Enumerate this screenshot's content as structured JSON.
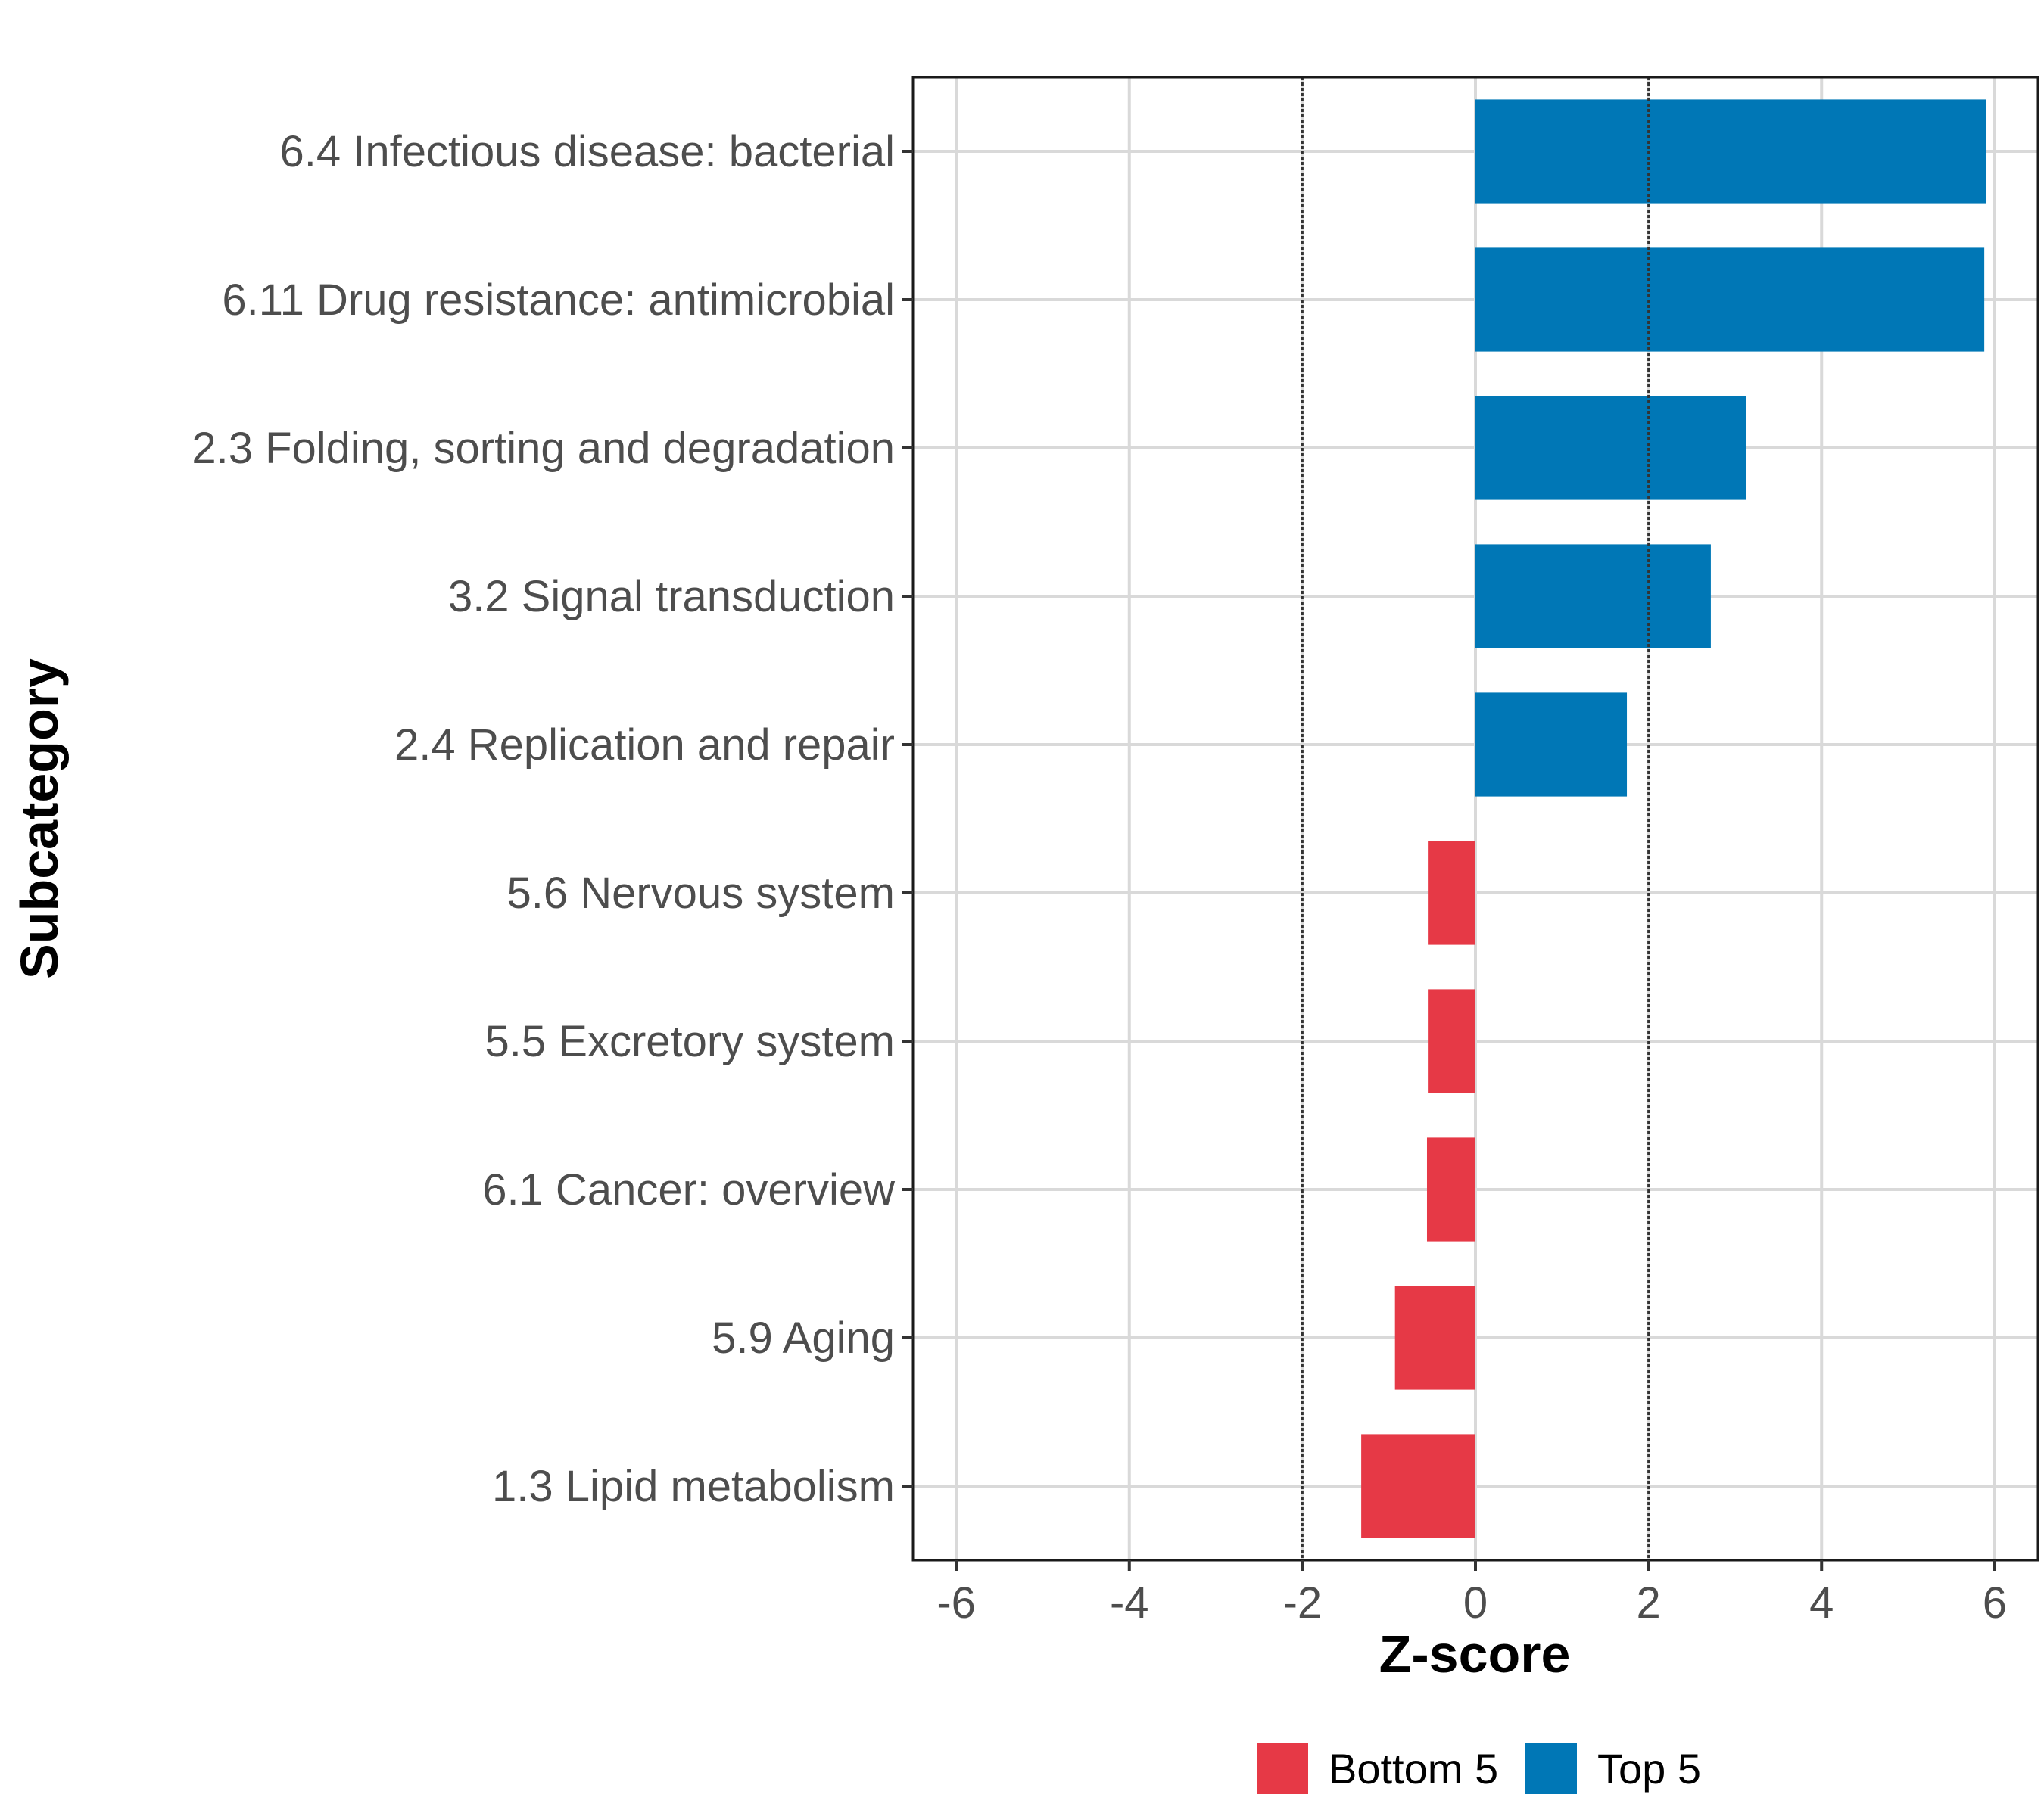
{
  "chart_data": {
    "type": "bar",
    "orientation": "horizontal",
    "categories": [
      "6.4 Infectious disease: bacterial",
      "6.11 Drug resistance: antimicrobial",
      "2.3 Folding, sorting and degradation",
      "3.2 Signal transduction",
      "2.4 Replication and repair",
      "5.6 Nervous system",
      "5.5 Excretory system",
      "6.1 Cancer: overview",
      "5.9 Aging",
      "1.3 Lipid metabolism"
    ],
    "values": [
      5.9,
      5.88,
      3.13,
      2.72,
      1.75,
      -0.55,
      -0.55,
      -0.56,
      -0.93,
      -1.32
    ],
    "groups": [
      "Top 5",
      "Top 5",
      "Top 5",
      "Top 5",
      "Top 5",
      "Bottom 5",
      "Bottom 5",
      "Bottom 5",
      "Bottom 5",
      "Bottom 5"
    ],
    "xlabel": "Z-score",
    "ylabel": "Subcategory",
    "xlim": [
      -6.5,
      6.5
    ],
    "xticks": [
      -6,
      -4,
      -2,
      0,
      2,
      4,
      6
    ],
    "xtick_labels": [
      "-6",
      "-4",
      "-2",
      "0",
      "2",
      "4",
      "6"
    ],
    "reference_lines": [
      -2,
      2
    ],
    "grid": true,
    "legend": {
      "position": "bottom",
      "entries": [
        {
          "label": "Bottom 5",
          "color": "#e63946"
        },
        {
          "label": "Top 5",
          "color": "#0077b6"
        }
      ]
    }
  }
}
